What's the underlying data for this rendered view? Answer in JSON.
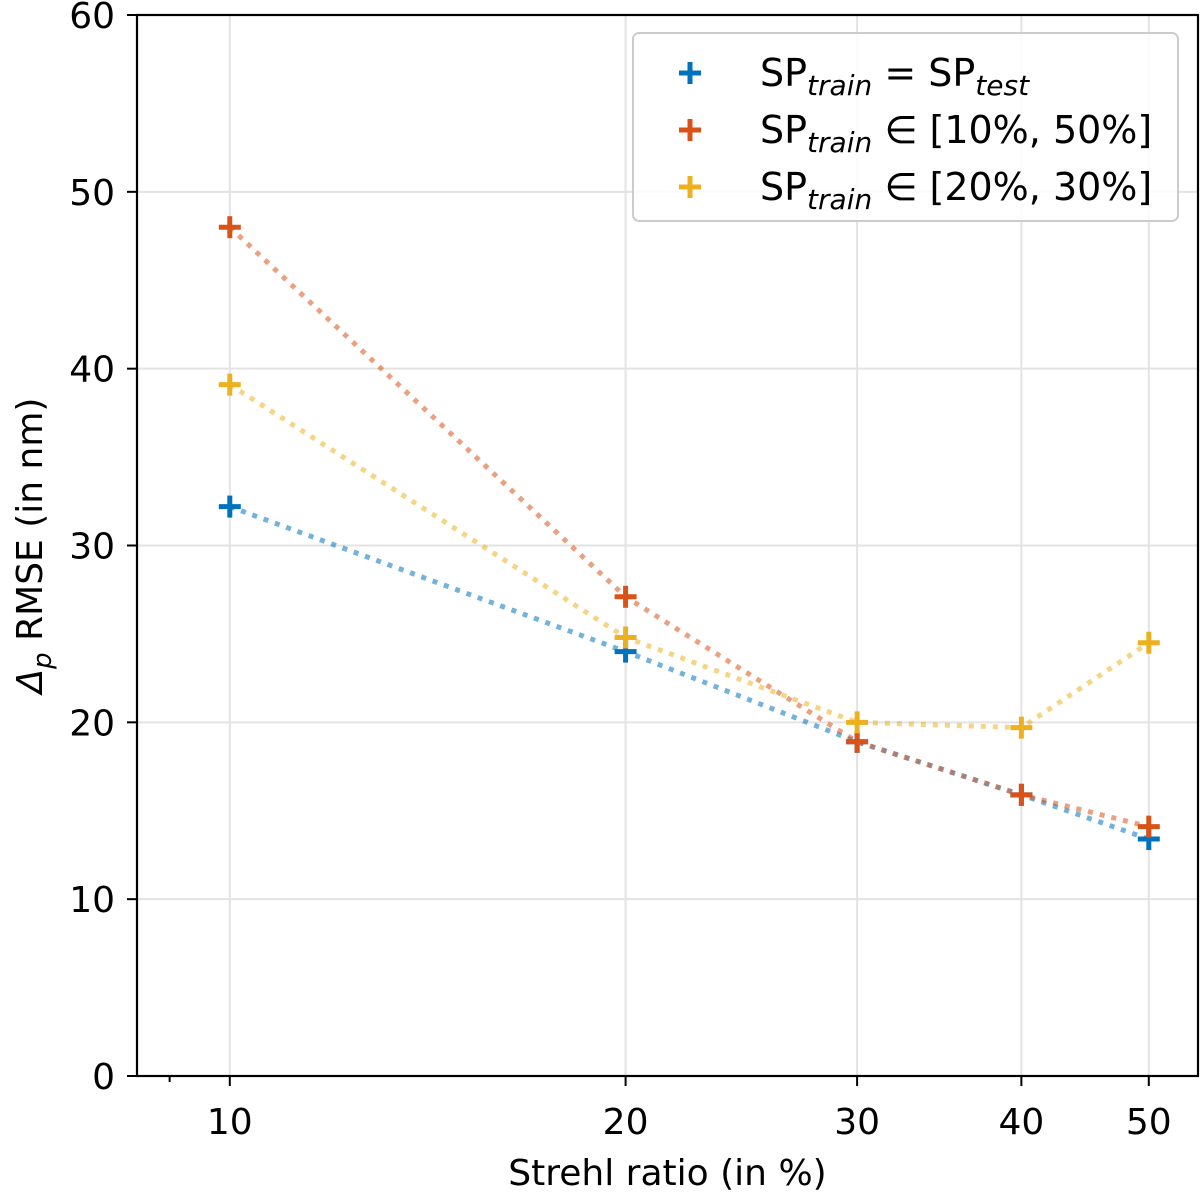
{
  "chart_data": {
    "type": "line",
    "x": [
      10,
      20,
      30,
      40,
      50
    ],
    "xlabel": "Strehl ratio (in %)",
    "ylabel_symbol": "Δ",
    "ylabel_sub": "p",
    "ylabel_rest": " RMSE (in nm)",
    "xlim": [
      8.5,
      54.5
    ],
    "x_scale": "log",
    "ylim": [
      0,
      60
    ],
    "xticks": [
      "10",
      "20",
      "30",
      "40",
      "50"
    ],
    "yticks": [
      "0",
      "10",
      "20",
      "30",
      "40",
      "50",
      "60"
    ],
    "grid": true,
    "legend_position": "top-right",
    "series": [
      {
        "name_main": "SP",
        "name_sub": "train",
        "name_relation": " = ",
        "name_tail_main": "SP",
        "name_tail_sub": "test",
        "color": "#0072BD",
        "values": [
          32.2,
          24.0,
          18.9,
          15.9,
          13.4
        ]
      },
      {
        "name_main": "SP",
        "name_sub": "train",
        "name_relation": " ∈ ",
        "name_tail_main": "[10%, 50%]",
        "name_tail_sub": "",
        "color": "#D95319",
        "values": [
          48.0,
          27.1,
          18.9,
          15.9,
          14.1
        ]
      },
      {
        "name_main": "SP",
        "name_sub": "train",
        "name_relation": " ∈ ",
        "name_tail_main": "[20%, 30%]",
        "name_tail_sub": "",
        "color": "#EDB120",
        "values": [
          39.1,
          24.8,
          20.0,
          19.7,
          24.5
        ]
      }
    ]
  }
}
